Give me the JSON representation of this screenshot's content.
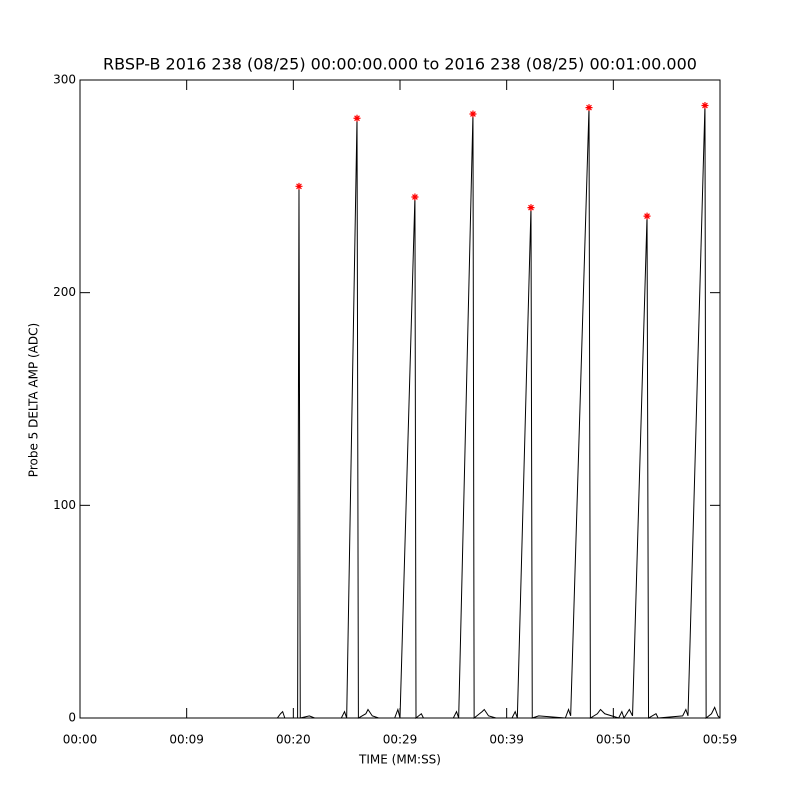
{
  "chart_data": {
    "type": "line",
    "title": "RBSP-B 2016 238 (08/25) 00:00:00.000 to 2016 238 (08/25) 00:01:00.000",
    "x_label": "TIME (MM:SS)",
    "y_label": "Probe 5 DELTA AMP (ADC)",
    "xlim": [
      0,
      60
    ],
    "xticks": [
      {
        "value": 0,
        "label": "00:00"
      },
      {
        "value": 10,
        "label": "00:09"
      },
      {
        "value": 20,
        "label": "00:20"
      },
      {
        "value": 30,
        "label": "00:29"
      },
      {
        "value": 40,
        "label": "00:39"
      },
      {
        "value": 50,
        "label": "00:50"
      },
      {
        "value": 60,
        "label": "00:59"
      }
    ],
    "ylim": [
      0,
      300
    ],
    "yticks": [
      0,
      100,
      200,
      300
    ],
    "series": [
      {
        "color": "#000000",
        "x": [
          0,
          18.5,
          18.8,
          19.0,
          19.2,
          20.4,
          20.53,
          20.65,
          21.5,
          22,
          24.5,
          24.8,
          25,
          25.97,
          26.1,
          26.8,
          27,
          27.4,
          28,
          29.5,
          29.8,
          30,
          31.4,
          31.5,
          32,
          32.2,
          35,
          35.3,
          35.5,
          36.84,
          36.95,
          37.7,
          37.9,
          38.3,
          39,
          40.5,
          40.8,
          41,
          42.28,
          42.4,
          43,
          45.5,
          45.8,
          46,
          47.72,
          47.85,
          48.5,
          48.8,
          49.2,
          50.5,
          50.8,
          51,
          51.5,
          51.8,
          53.16,
          53.3,
          54,
          54.2,
          56.5,
          56.8,
          57,
          58.59,
          58.7,
          59.2,
          59.5,
          59.8,
          60
        ],
        "values": [
          0,
          0,
          2,
          3,
          0,
          0,
          250,
          0,
          1,
          0,
          0,
          3,
          0,
          282,
          0,
          2,
          4,
          1,
          0,
          0,
          4,
          0,
          245,
          0,
          2,
          0,
          0,
          3,
          0,
          284,
          0,
          3,
          4,
          1,
          0,
          0,
          3,
          0,
          240,
          0,
          1,
          0,
          4,
          1,
          287,
          0,
          2,
          4,
          2,
          0,
          3,
          0,
          4,
          1,
          236,
          0,
          2,
          0,
          1,
          4,
          1,
          288,
          0,
          2,
          5,
          1,
          0
        ]
      },
      {
        "type": "scatter",
        "color": "#ff0000",
        "x": [
          20.53,
          25.97,
          31.4,
          36.84,
          42.28,
          47.72,
          53.16,
          58.59
        ],
        "values": [
          250,
          282,
          245,
          284,
          240,
          287,
          236,
          288
        ]
      }
    ]
  }
}
